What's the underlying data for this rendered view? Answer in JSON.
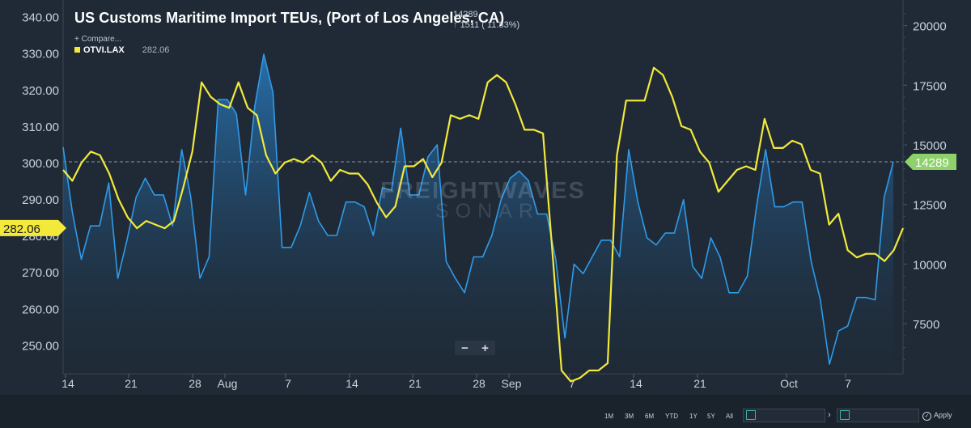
{
  "header": {
    "title": "US Customs Maritime Import TEUs, (Port of Los Angeles, CA)",
    "current_value": "14289",
    "change_arrow": "↑",
    "change": "1511 ( 11.83%)",
    "compare_label": "+ Compare...",
    "legend_series_name": "OTVI.LAX",
    "legend_series_value": "282.06"
  },
  "watermark": {
    "line1": "FREIGHTWAVES",
    "line2": "SONAR"
  },
  "zoom": {
    "minus": "−",
    "plus": "+"
  },
  "toolbar": {
    "ranges": [
      "1M",
      "3M",
      "6M",
      "YTD",
      "1Y",
      "5Y",
      "All"
    ],
    "apply_label": "Apply"
  },
  "colors": {
    "blue": "#2f9be8",
    "yellow": "#f2e93a",
    "green": "#8ed16a",
    "background": "#1f2a36"
  },
  "chart_data": {
    "type": "line",
    "title": "US Customs Maritime Import TEUs, (Port of Los Angeles, CA)",
    "x_tick_labels": [
      "14",
      "21",
      "28",
      "Aug",
      "7",
      "14",
      "21",
      "28",
      "Sep",
      "7",
      "14",
      "21",
      "Oct",
      "7"
    ],
    "left_axis": {
      "ticks": [
        "340.00",
        "330.00",
        "320.00",
        "310.00",
        "300.00",
        "290.00",
        "280.00",
        "270.00",
        "260.00",
        "250.00"
      ],
      "range": [
        242.1,
        342.8
      ]
    },
    "right_axis": {
      "ticks": [
        "20000",
        "17500",
        "15000",
        "12500",
        "10000",
        "7500"
      ],
      "range": [
        5400,
        20800
      ]
    },
    "left_marker": "282.06",
    "right_marker": "14289",
    "reference_line_value": 14289,
    "series": [
      {
        "name": "OTVI.LAX",
        "axis": "left",
        "color": "#f2e93a",
        "values": [
          298.0,
          295.0,
          300.0,
          303.0,
          302.0,
          297.0,
          290.0,
          285.0,
          282.0,
          284.0,
          283.0,
          282.0,
          284.0,
          293.0,
          303.0,
          322.0,
          318.0,
          316.0,
          315.0,
          322.0,
          315.0,
          313.0,
          302.0,
          297.0,
          300.0,
          301.0,
          300.0,
          302.0,
          300.0,
          295.0,
          298.0,
          297.0,
          297.0,
          294.0,
          289.0,
          285.0,
          288.0,
          299.0,
          299.0,
          301.0,
          296.0,
          300.0,
          313.0,
          312.0,
          313.0,
          312.0,
          322.0,
          324.0,
          322.0,
          316.0,
          309.0,
          309.0,
          308.0,
          276.0,
          243.0,
          240.0,
          241.0,
          243.0,
          243.0,
          245.0,
          302.0,
          317.0,
          317.0,
          317.0,
          326.0,
          324.0,
          318.0,
          310.0,
          309.0,
          303.0,
          300.0,
          292.0,
          295.0,
          298.0,
          299.0,
          298.0,
          312.0,
          304.0,
          304.0,
          306.0,
          305.0,
          298.0,
          297.0,
          283.0,
          286.0,
          276.0,
          274.0,
          275.0,
          275.0,
          273.0,
          276.0,
          282.0
        ]
      },
      {
        "name": "US Customs Maritime Import TEUs",
        "axis": "right",
        "color": "#2f9be8",
        "values": [
          14900,
          12200,
          10200,
          11600,
          11600,
          13400,
          9400,
          11000,
          12800,
          13600,
          12900,
          12900,
          11600,
          14800,
          12800,
          9400,
          10300,
          16900,
          16900,
          16300,
          12900,
          16600,
          18800,
          17200,
          10700,
          10700,
          11600,
          13000,
          11800,
          11200,
          11200,
          12600,
          12600,
          12400,
          11200,
          13200,
          13100,
          15700,
          12900,
          12900,
          14500,
          15000,
          10100,
          9400,
          8800,
          10300,
          10300,
          11200,
          12700,
          13600,
          13900,
          13500,
          12100,
          12100,
          10200,
          6900,
          10000,
          9600,
          10300,
          11000,
          11000,
          10300,
          14800,
          12600,
          11100,
          10800,
          11300,
          11300,
          12700,
          9900,
          9400,
          11100,
          10300,
          8800,
          8800,
          9500,
          12400,
          14800,
          12400,
          12400,
          12600,
          12600,
          10100,
          8500,
          5800,
          7200,
          7400,
          8600,
          8600,
          8500,
          12800,
          14289
        ]
      }
    ]
  }
}
